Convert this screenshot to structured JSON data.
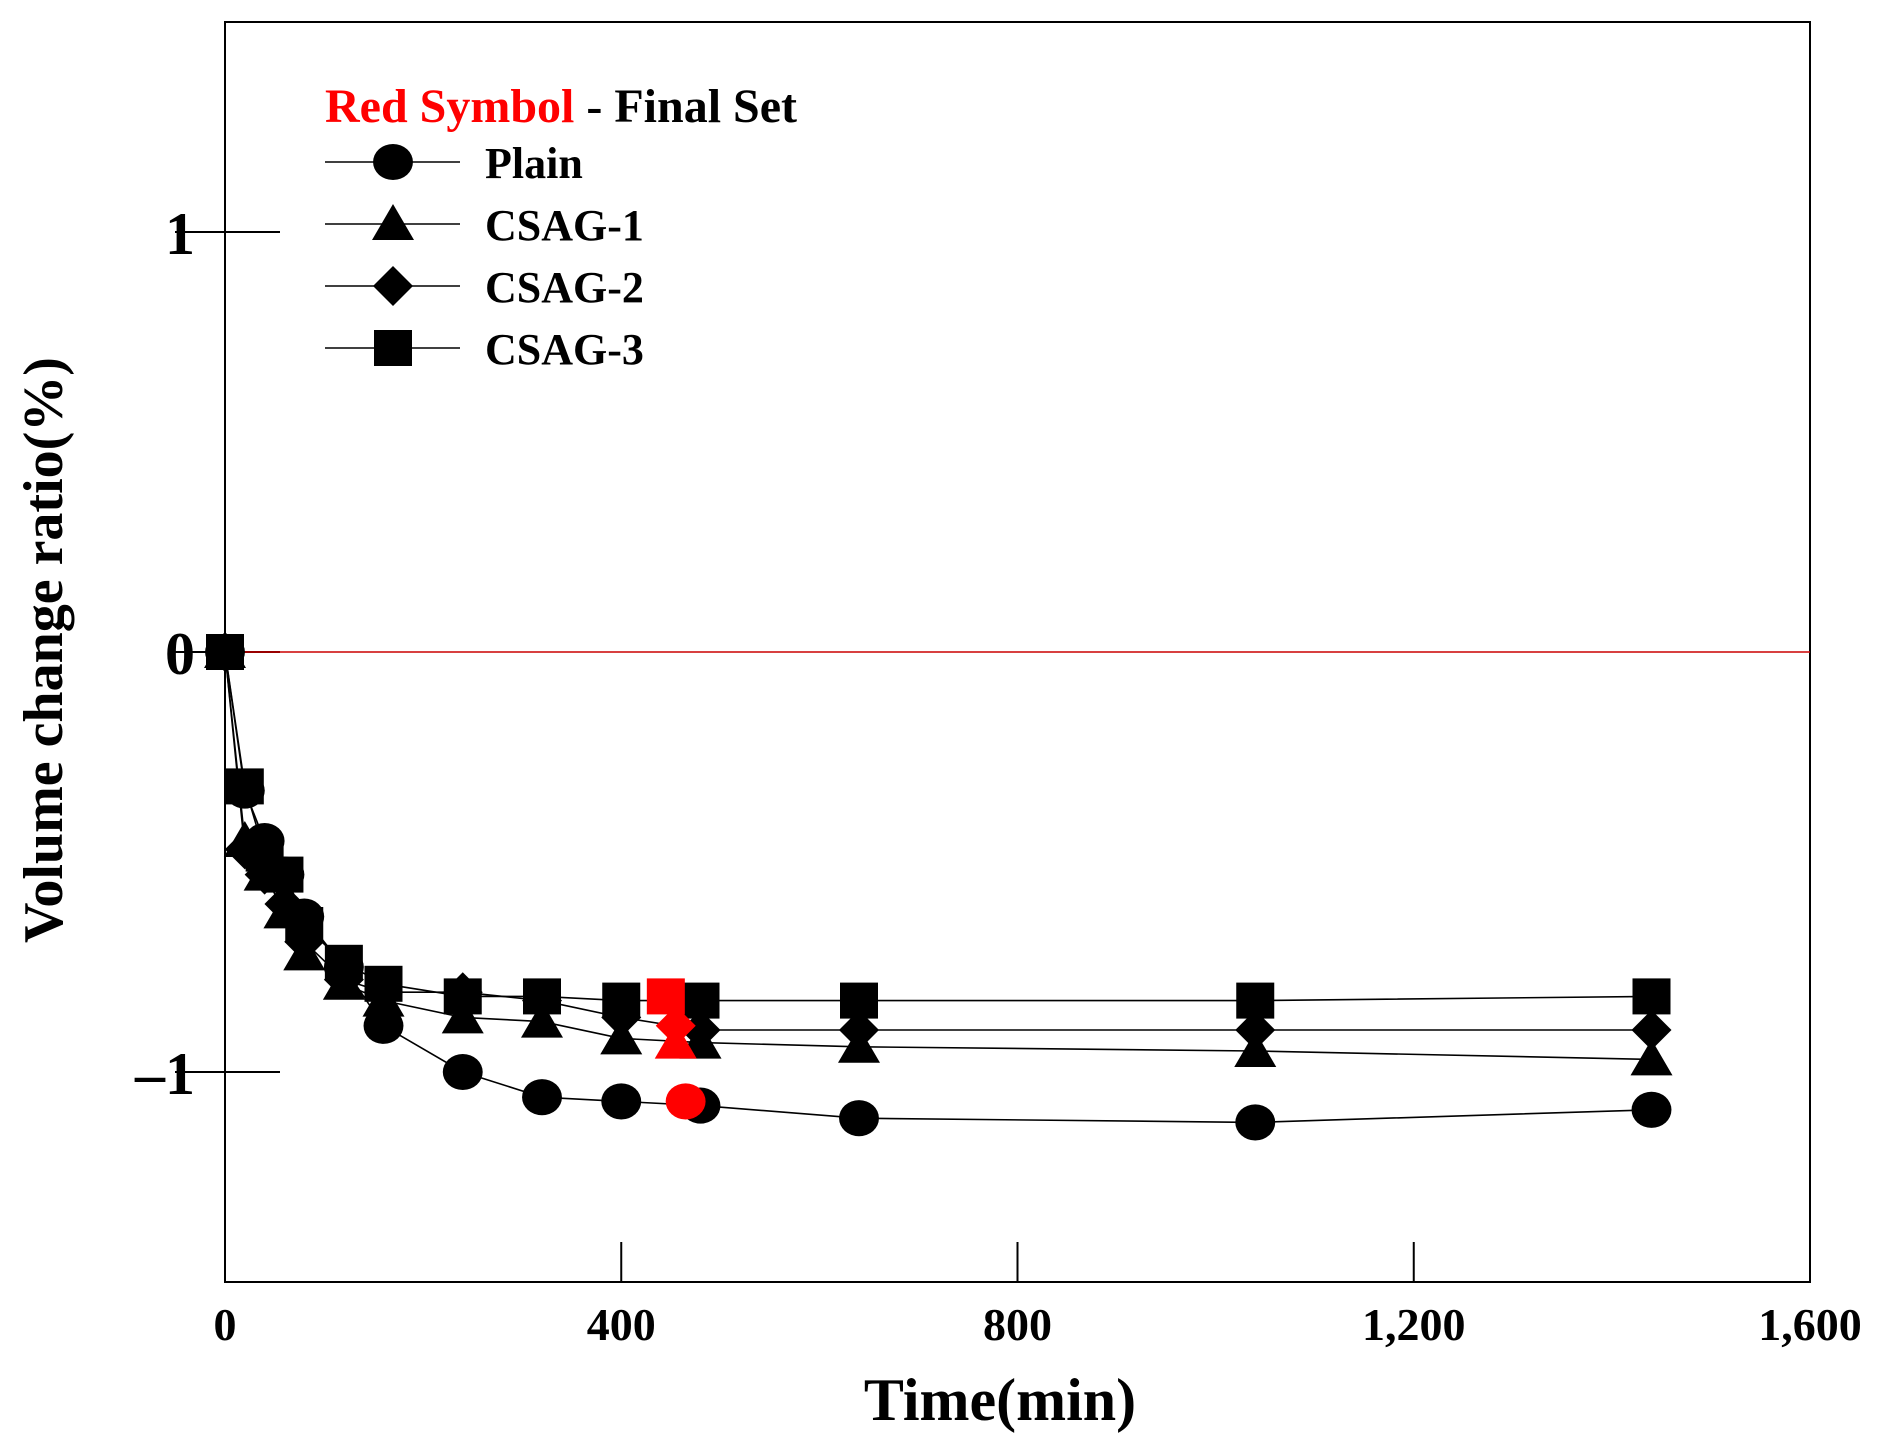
{
  "chart_data": {
    "type": "line",
    "title": "",
    "xlabel": "Time(min)",
    "ylabel": "Volume change ratio(%)",
    "xlim": [
      0,
      1600
    ],
    "ylim": [
      -1.5,
      1.5
    ],
    "x_ticks": [
      0,
      400,
      800,
      1200,
      1600
    ],
    "x_tick_labels": [
      "0",
      "400",
      "800",
      "1,200",
      "1,600"
    ],
    "y_ticks": [
      -1,
      0,
      1
    ],
    "y_tick_labels": [
      "–1",
      "0",
      "1"
    ],
    "reference_line": {
      "y": 0,
      "color": "#cc0000"
    },
    "legend": {
      "position": "top-left",
      "note_red": "Red Symbol",
      "note_rest": " - Final Set"
    },
    "colors": {
      "series": "#000000",
      "final_set": "#ff0000"
    },
    "series": [
      {
        "name": "Plain",
        "marker": "circle",
        "x": [
          0,
          20,
          40,
          60,
          80,
          120,
          160,
          240,
          320,
          400,
          480,
          640,
          1040,
          1440
        ],
        "y": [
          0,
          -0.33,
          -0.45,
          -0.53,
          -0.63,
          -0.75,
          -0.89,
          -1.0,
          -1.06,
          -1.07,
          -1.08,
          -1.11,
          -1.12,
          -1.09
        ],
        "final_set": {
          "x": 465,
          "y": -1.07
        }
      },
      {
        "name": "CSAG-1",
        "marker": "triangle",
        "x": [
          0,
          20,
          40,
          60,
          80,
          120,
          160,
          240,
          320,
          400,
          480,
          640,
          1040,
          1440
        ],
        "y": [
          0,
          -0.45,
          -0.53,
          -0.62,
          -0.72,
          -0.79,
          -0.83,
          -0.87,
          -0.88,
          -0.92,
          -0.93,
          -0.94,
          -0.95,
          -0.97
        ],
        "final_set": {
          "x": 455,
          "y": -0.93
        }
      },
      {
        "name": "CSAG-2",
        "marker": "diamond",
        "x": [
          0,
          20,
          40,
          60,
          80,
          120,
          160,
          240,
          320,
          400,
          480,
          640,
          1040,
          1440
        ],
        "y": [
          0,
          -0.47,
          -0.53,
          -0.6,
          -0.69,
          -0.78,
          -0.81,
          -0.81,
          -0.83,
          -0.87,
          -0.9,
          -0.9,
          -0.9,
          -0.9
        ],
        "final_set": {
          "x": 455,
          "y": -0.89
        }
      },
      {
        "name": "CSAG-3",
        "marker": "square",
        "x": [
          0,
          20,
          40,
          60,
          80,
          120,
          160,
          240,
          320,
          400,
          480,
          640,
          1040,
          1440
        ],
        "y": [
          0,
          -0.32,
          -0.48,
          -0.53,
          -0.65,
          -0.74,
          -0.79,
          -0.82,
          -0.82,
          -0.83,
          -0.83,
          -0.83,
          -0.83,
          -0.82
        ],
        "final_set": {
          "x": 445,
          "y": -0.82
        }
      }
    ]
  }
}
